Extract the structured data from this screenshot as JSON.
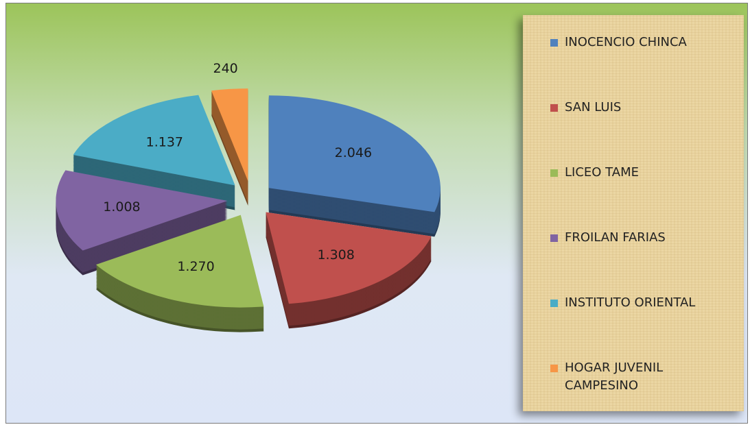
{
  "chart_data": {
    "type": "pie",
    "categories": [
      "INOCENCIO CHINCA",
      "SAN LUIS",
      "LICEO TAME",
      "FROILAN FARIAS",
      "INSTITUTO ORIENTAL",
      "HOGAR JUVENIL CAMPESINO"
    ],
    "values": [
      2046,
      1308,
      1270,
      1008,
      1137,
      240
    ],
    "value_labels": [
      "2.046",
      "1.308",
      "1.270",
      "1.008",
      "1.137",
      "240"
    ],
    "colors": [
      "#4f81bd",
      "#c0504d",
      "#9bbb59",
      "#8064a2",
      "#4bacc6",
      "#f79646"
    ],
    "legend": "right"
  }
}
